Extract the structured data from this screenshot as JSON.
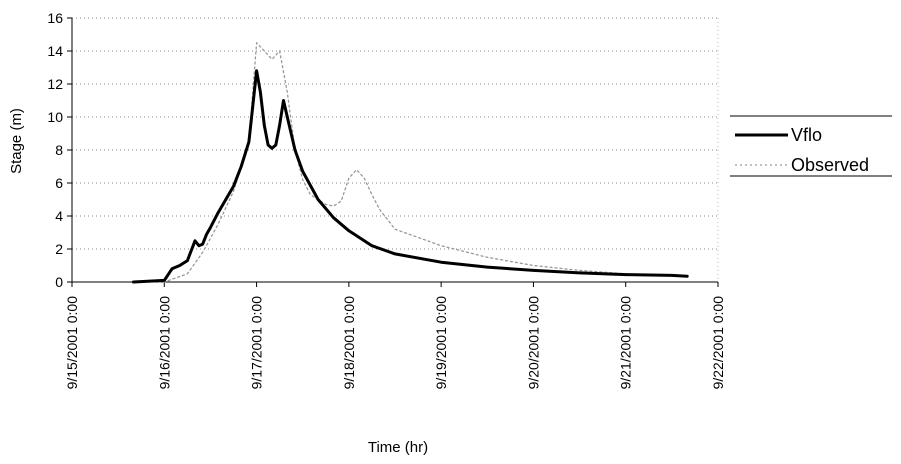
{
  "chart_data": {
    "type": "line",
    "title": "",
    "xlabel": "Time (hr)",
    "ylabel": "Stage (m)",
    "xlim": [
      "9/15/2001 0:00",
      "9/22/2001 0:00"
    ],
    "ylim": [
      0,
      16
    ],
    "yticks": [
      0,
      2,
      4,
      6,
      8,
      10,
      12,
      14,
      16
    ],
    "xtick_labels": [
      "9/15/2001 0:00",
      "9/16/2001 0:00",
      "9/17/2001 0:00",
      "9/18/2001 0:00",
      "9/19/2001 0:00",
      "9/20/2001 0:00",
      "9/21/2001 0:00",
      "9/22/2001 0:00"
    ],
    "grid": "horizontal dotted",
    "legend_position": "right",
    "series": [
      {
        "name": "Vflo",
        "color": "#000000",
        "style": "solid-thick",
        "x": [
          "9/15/2001 16:00",
          "9/16/2001 0:00",
          "9/16/2001 2:00",
          "9/16/2001 4:00",
          "9/16/2001 6:00",
          "9/16/2001 8:00",
          "9/16/2001 9:00",
          "9/16/2001 10:00",
          "9/16/2001 11:00",
          "9/16/2001 12:00",
          "9/16/2001 14:00",
          "9/16/2001 16:00",
          "9/16/2001 18:00",
          "9/16/2001 20:00",
          "9/16/2001 22:00",
          "9/17/2001 0:00",
          "9/17/2001 1:00",
          "9/17/2001 2:00",
          "9/17/2001 3:00",
          "9/17/2001 4:00",
          "9/17/2001 5:00",
          "9/17/2001 6:00",
          "9/17/2001 7:00",
          "9/17/2001 8:00",
          "9/17/2001 10:00",
          "9/17/2001 12:00",
          "9/17/2001 16:00",
          "9/17/2001 20:00",
          "9/18/2001 0:00",
          "9/18/2001 6:00",
          "9/18/2001 12:00",
          "9/19/2001 0:00",
          "9/19/2001 12:00",
          "9/20/2001 0:00",
          "9/20/2001 12:00",
          "9/21/2001 0:00",
          "9/21/2001 12:00",
          "9/21/2001 16:00"
        ],
        "y": [
          0,
          0.1,
          0.8,
          1.0,
          1.3,
          2.5,
          2.2,
          2.3,
          2.9,
          3.3,
          4.2,
          5.0,
          5.8,
          7.0,
          8.5,
          12.8,
          11.5,
          9.5,
          8.3,
          8.1,
          8.3,
          9.5,
          11.0,
          10.0,
          8.0,
          6.7,
          5.0,
          3.9,
          3.1,
          2.2,
          1.7,
          1.2,
          0.9,
          0.7,
          0.55,
          0.45,
          0.4,
          0.35
        ]
      },
      {
        "name": "Observed",
        "color": "#999999",
        "style": "dotted-thin",
        "x": [
          "9/15/2001 16:00",
          "9/16/2001 0:00",
          "9/16/2001 6:00",
          "9/16/2001 10:00",
          "9/16/2001 14:00",
          "9/16/2001 18:00",
          "9/16/2001 22:00",
          "9/17/2001 0:00",
          "9/17/2001 2:00",
          "9/17/2001 4:00",
          "9/17/2001 6:00",
          "9/17/2001 8:00",
          "9/17/2001 10:00",
          "9/17/2001 12:00",
          "9/17/2001 14:00",
          "9/17/2001 16:00",
          "9/17/2001 18:00",
          "9/17/2001 20:00",
          "9/17/2001 22:00",
          "9/18/2001 0:00",
          "9/18/2001 2:00",
          "9/18/2001 4:00",
          "9/18/2001 6:00",
          "9/18/2001 8:00",
          "9/18/2001 12:00",
          "9/18/2001 18:00",
          "9/19/2001 0:00",
          "9/19/2001 12:00",
          "9/20/2001 0:00",
          "9/20/2001 12:00",
          "9/21/2001 0:00"
        ],
        "y": [
          0,
          0,
          0.5,
          1.8,
          3.5,
          5.5,
          8.5,
          14.5,
          14.0,
          13.5,
          14.0,
          11.5,
          8.0,
          6.2,
          5.3,
          5.0,
          4.7,
          4.6,
          4.9,
          6.3,
          6.8,
          6.3,
          5.3,
          4.4,
          3.2,
          2.7,
          2.2,
          1.5,
          1.0,
          0.7,
          0.5
        ]
      }
    ]
  }
}
